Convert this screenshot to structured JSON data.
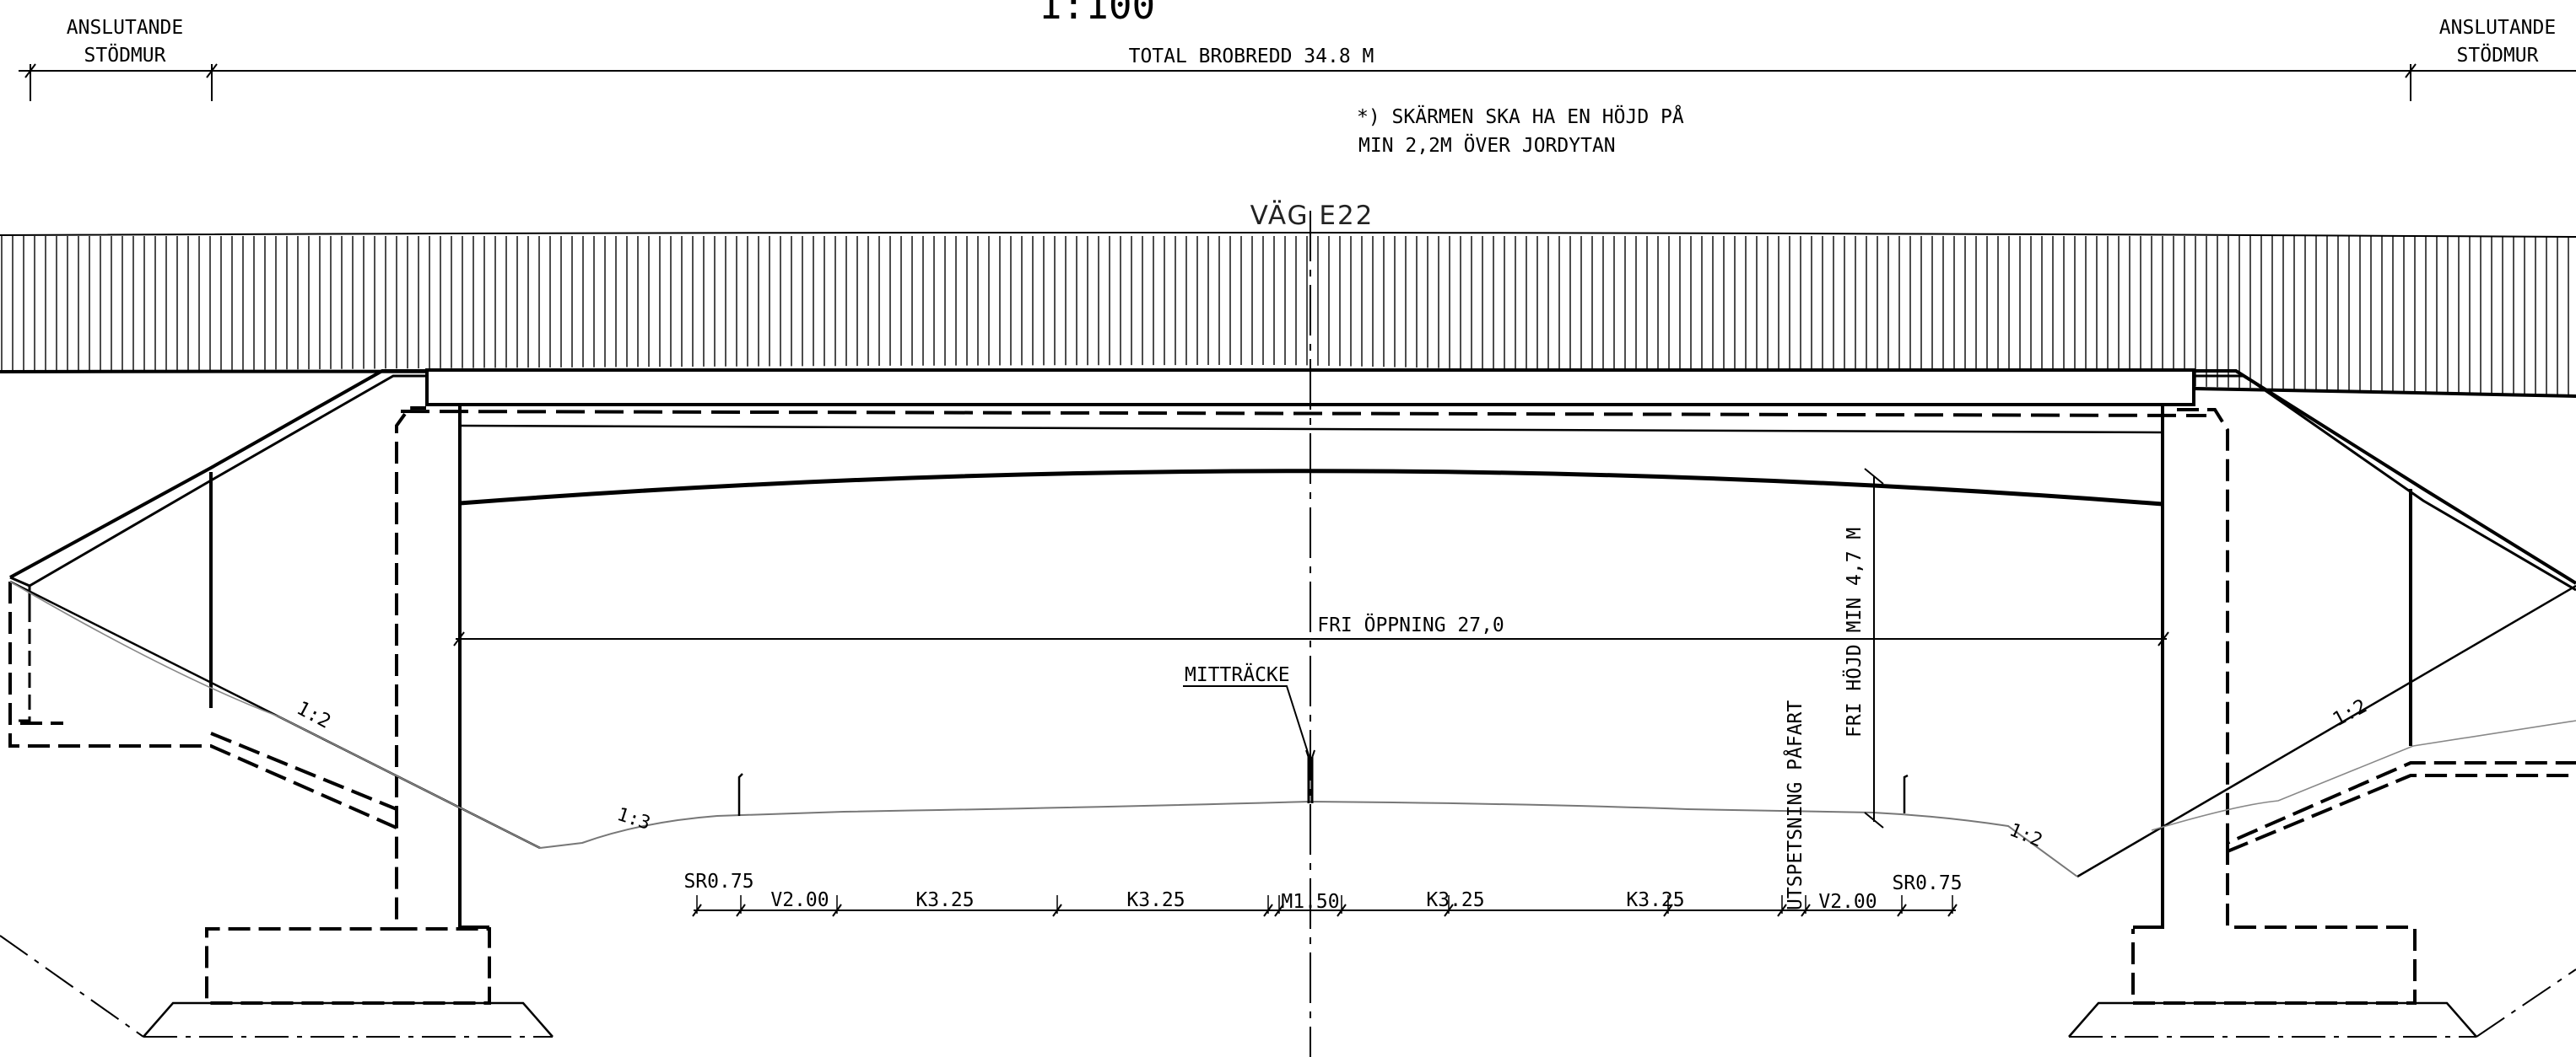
{
  "scale": "1:100",
  "left_wall_label": [
    "ANSLUTANDE",
    "STÖDMUR"
  ],
  "right_wall_label": [
    "ANSLUTANDE",
    "STÖDMUR"
  ],
  "total_width_label": "TOTAL BROBREDD 34.8 M",
  "note": [
    "*) SKÄRMEN SKA HA EN HÖJD PÅ",
    "MIN 2,2M ÖVER JORDYTAN"
  ],
  "road_name": "VÄG E22",
  "clear_opening": "FRI ÖPPNING 27,0",
  "clear_height": "FRI HÖJD MIN 4,7 M",
  "median_barrier": "MITTRÄCKE",
  "ramp_widening": "UTSPETSNING PÅFART",
  "slopes": {
    "left_bank": "1:2",
    "right_bank": "1:2",
    "left_ditch": "1:3",
    "right_ditch": "1:2"
  },
  "lanes": [
    "SR0.75",
    "V2.00",
    "K3.25",
    "K3.25",
    "M1.50",
    "K3.25",
    "K3.25",
    "V2.00",
    "SR0.75"
  ]
}
